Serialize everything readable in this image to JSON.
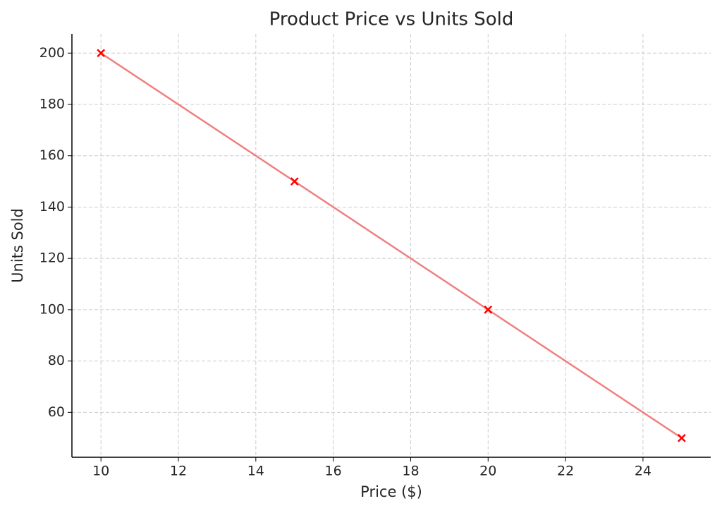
{
  "chart_data": {
    "type": "line",
    "title": "Product Price vs Units Sold",
    "xlabel": "Price ($)",
    "ylabel": "Units Sold",
    "x": [
      10,
      15,
      20,
      25
    ],
    "series": [
      {
        "name": "Units Sold",
        "color": "#f08080",
        "marker": "x",
        "marker_color": "#ff0000",
        "values": [
          200,
          150,
          100,
          50
        ]
      }
    ],
    "xlim": [
      9.25,
      25.75
    ],
    "xticks": [
      10,
      12,
      14,
      16,
      18,
      20,
      22,
      24
    ],
    "ylim": [
      42.5,
      207.5
    ],
    "yticks": [
      60,
      80,
      100,
      120,
      140,
      160,
      180,
      200
    ],
    "grid": true
  }
}
